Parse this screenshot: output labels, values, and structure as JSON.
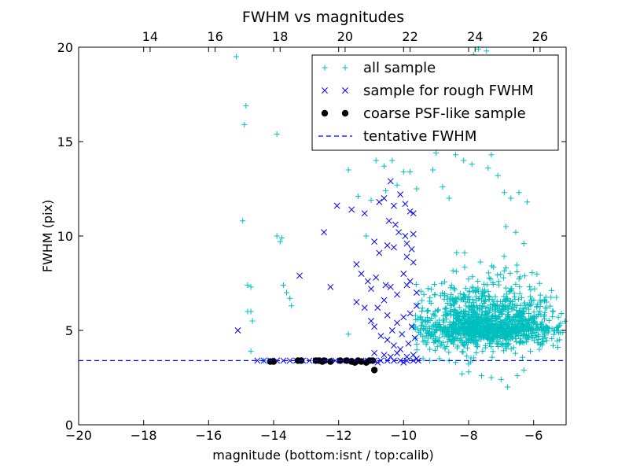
{
  "chart_data": {
    "type": "scatter",
    "title": "FWHM vs magnitudes",
    "xlabel": "magnitude (bottom:isnt / top:calib)",
    "ylabel": "FWHM (pix)",
    "xlim": [
      -20,
      -5
    ],
    "ylim": [
      0,
      20
    ],
    "x_ticks": [
      -20,
      -18,
      -16,
      -14,
      -12,
      -10,
      -8,
      -6
    ],
    "x_tick_labels": [
      "−20",
      "−18",
      "−16",
      "−14",
      "−12",
      "−10",
      "−8",
      "−6"
    ],
    "y_ticks": [
      0,
      5,
      10,
      15,
      20
    ],
    "y_tick_labels": [
      "0",
      "5",
      "10",
      "15",
      "20"
    ],
    "top_axis": {
      "label_offset": 31.8,
      "ticks": [
        14,
        16,
        18,
        20,
        22,
        24,
        26
      ],
      "tick_labels": [
        "14",
        "16",
        "18",
        "20",
        "22",
        "24",
        "26"
      ]
    },
    "grid": false,
    "legend_position": "top-right",
    "legend": [
      {
        "label": "all sample",
        "marker": "+",
        "color": "#00bfbf"
      },
      {
        "label": "sample for rough FWHM",
        "marker": "x",
        "color": "#0000ff"
      },
      {
        "label": "coarse PSF-like sample",
        "marker": "o",
        "color": "#000000"
      },
      {
        "label": "tentative FWHM",
        "marker": "dashed-line",
        "color": "#0000ff"
      }
    ],
    "tentative_fwhm": 3.4,
    "series": [
      {
        "name": "all sample",
        "marker": "+",
        "color": "#00bfbf",
        "points": [
          [
            -15.15,
            19.5
          ],
          [
            -14.85,
            16.9
          ],
          [
            -14.9,
            15.9
          ],
          [
            -14.95,
            10.8
          ],
          [
            -14.8,
            7.4
          ],
          [
            -14.7,
            7.3
          ],
          [
            -14.8,
            6.0
          ],
          [
            -14.7,
            6.0
          ],
          [
            -14.65,
            5.5
          ],
          [
            -14.7,
            3.9
          ],
          [
            -14.3,
            3.4
          ],
          [
            -13.9,
            15.4
          ],
          [
            -13.9,
            10.0
          ],
          [
            -13.75,
            9.9
          ],
          [
            -13.8,
            9.7
          ],
          [
            -13.7,
            7.4
          ],
          [
            -13.6,
            7.0
          ],
          [
            -13.5,
            6.7
          ],
          [
            -13.45,
            6.3
          ],
          [
            -11.7,
            13.5
          ],
          [
            -11.4,
            12.1
          ],
          [
            -11.15,
            10.0
          ],
          [
            -10.85,
            14.0
          ],
          [
            -11.0,
            11.9
          ],
          [
            -11.7,
            4.8
          ],
          [
            -10.6,
            13.7
          ],
          [
            -10.55,
            12.4
          ],
          [
            -10.35,
            14.0
          ],
          [
            -10.2,
            12.7
          ],
          [
            -10.0,
            13.4
          ],
          [
            -9.8,
            13.4
          ],
          [
            -9.6,
            12.5
          ],
          [
            -9.7,
            14.7
          ],
          [
            -9.4,
            15.2
          ],
          [
            -9.0,
            14.4
          ],
          [
            -9.1,
            13.5
          ],
          [
            -8.8,
            12.6
          ],
          [
            -8.6,
            12.0
          ],
          [
            -8.4,
            14.3
          ],
          [
            -8.15,
            14.0
          ],
          [
            -7.9,
            13.8
          ],
          [
            -7.7,
            14.8
          ],
          [
            -7.4,
            13.6
          ],
          [
            -7.1,
            13.2
          ],
          [
            -6.9,
            12.3
          ],
          [
            -6.7,
            12.0
          ],
          [
            -8.05,
            16.9
          ],
          [
            -7.95,
            18.3
          ],
          [
            -7.8,
            15.5
          ],
          [
            -7.6,
            16.7
          ],
          [
            -7.5,
            15.2
          ],
          [
            -7.35,
            15.5
          ],
          [
            -7.3,
            14.3
          ],
          [
            -7.2,
            17.5
          ],
          [
            -7.7,
            19.9
          ],
          [
            -7.85,
            19.6
          ],
          [
            -7.45,
            19.8
          ],
          [
            -7.2,
            19.0
          ],
          [
            -8.3,
            18.9
          ],
          [
            -8.2,
            15.3
          ],
          [
            -8.5,
            16.7
          ],
          [
            -8.7,
            17.5
          ],
          [
            -6.45,
            12.3
          ],
          [
            -6.2,
            11.8
          ],
          [
            -6.85,
            10.5
          ],
          [
            -6.55,
            10.2
          ],
          [
            -6.3,
            9.6
          ],
          [
            -5.8,
            6.6
          ],
          [
            -5.6,
            6.5
          ],
          [
            -5.4,
            6.0
          ],
          [
            -5.3,
            5.0
          ],
          [
            -5.2,
            4.5
          ],
          [
            -5.1,
            4.9
          ],
          [
            -5.4,
            4.2
          ],
          [
            -5.7,
            4.4
          ],
          [
            -5.9,
            5.3
          ],
          [
            -6.1,
            3.9
          ],
          [
            -6.3,
            2.9
          ],
          [
            -6.8,
            2.0
          ],
          [
            -7.0,
            2.4
          ],
          [
            -7.3,
            2.5
          ],
          [
            -7.6,
            2.6
          ],
          [
            -8.0,
            2.8
          ],
          [
            -8.2,
            2.7
          ],
          [
            -6.5,
            2.6
          ],
          [
            -9.4,
            3.5
          ],
          [
            -9.2,
            3.4
          ],
          [
            -8.9,
            3.5
          ],
          [
            -8.6,
            3.4
          ],
          [
            -8.4,
            3.3
          ]
        ],
        "cluster": {
          "count": 1400,
          "center": [
            -7.5,
            5.2
          ],
          "spread": [
            1.1,
            1.4
          ],
          "xlim": [
            -9.7,
            -5.0
          ],
          "ylim": [
            3.1,
            12.8
          ]
        }
      },
      {
        "name": "sample for rough FWHM",
        "marker": "x",
        "color": "#0000ff",
        "points": [
          [
            -15.1,
            5.0
          ],
          [
            -13.2,
            7.9
          ],
          [
            -12.45,
            10.2
          ],
          [
            -12.25,
            7.3
          ],
          [
            -12.05,
            11.6
          ],
          [
            -11.6,
            11.4
          ],
          [
            -11.2,
            11.2
          ],
          [
            -11.45,
            8.5
          ],
          [
            -11.3,
            8.0
          ],
          [
            -11.1,
            7.6
          ],
          [
            -11.0,
            7.2
          ],
          [
            -11.45,
            6.5
          ],
          [
            -11.2,
            6.2
          ],
          [
            -11.0,
            5.5
          ],
          [
            -10.9,
            5.2
          ],
          [
            -10.75,
            11.8
          ],
          [
            -10.6,
            12.0
          ],
          [
            -10.4,
            12.9
          ],
          [
            -10.3,
            11.6
          ],
          [
            -10.1,
            12.2
          ],
          [
            -9.95,
            11.7
          ],
          [
            -9.8,
            11.3
          ],
          [
            -9.7,
            11.2
          ],
          [
            -10.9,
            9.7
          ],
          [
            -10.75,
            9.1
          ],
          [
            -10.5,
            9.5
          ],
          [
            -10.3,
            9.4
          ],
          [
            -9.9,
            8.9
          ],
          [
            -9.75,
            9.3
          ],
          [
            -10.55,
            7.4
          ],
          [
            -10.4,
            7.3
          ],
          [
            -10.6,
            6.6
          ],
          [
            -10.2,
            6.9
          ],
          [
            -9.8,
            7.6
          ],
          [
            -9.6,
            7.0
          ],
          [
            -10.0,
            8.0
          ],
          [
            -9.9,
            7.4
          ],
          [
            -9.7,
            8.6
          ],
          [
            -10.8,
            6.2
          ],
          [
            -10.5,
            5.8
          ],
          [
            -10.2,
            5.4
          ],
          [
            -10.0,
            5.7
          ],
          [
            -9.8,
            5.9
          ],
          [
            -9.6,
            6.3
          ],
          [
            -10.7,
            4.7
          ],
          [
            -10.5,
            4.5
          ],
          [
            -10.3,
            4.2
          ],
          [
            -10.1,
            4.0
          ],
          [
            -9.85,
            4.3
          ],
          [
            -9.65,
            4.6
          ],
          [
            -10.9,
            3.8
          ],
          [
            -10.6,
            3.7
          ],
          [
            -10.4,
            3.6
          ],
          [
            -10.2,
            3.8
          ],
          [
            -9.9,
            3.6
          ],
          [
            -9.7,
            3.7
          ],
          [
            -14.5,
            3.4
          ],
          [
            -14.3,
            3.4
          ],
          [
            -14.1,
            3.4
          ],
          [
            -13.9,
            3.4
          ],
          [
            -13.7,
            3.4
          ],
          [
            -13.5,
            3.4
          ],
          [
            -13.3,
            3.4
          ],
          [
            -13.1,
            3.4
          ],
          [
            -12.9,
            3.4
          ],
          [
            -12.7,
            3.4
          ],
          [
            -12.5,
            3.4
          ],
          [
            -12.3,
            3.4
          ],
          [
            -12.1,
            3.4
          ],
          [
            -11.9,
            3.4
          ],
          [
            -11.7,
            3.4
          ],
          [
            -11.5,
            3.4
          ],
          [
            -11.3,
            3.4
          ],
          [
            -11.1,
            3.4
          ],
          [
            -10.9,
            3.4
          ],
          [
            -10.7,
            3.4
          ],
          [
            -10.5,
            3.4
          ],
          [
            -10.3,
            3.4
          ],
          [
            -10.1,
            3.4
          ],
          [
            -9.9,
            3.4
          ],
          [
            -9.7,
            3.4
          ],
          [
            -9.55,
            3.4
          ],
          [
            -10.8,
            3.3
          ],
          [
            -10.0,
            3.3
          ],
          [
            -9.6,
            3.5
          ],
          [
            -10.25,
            10.6
          ],
          [
            -10.15,
            10.2
          ],
          [
            -9.95,
            10.0
          ],
          [
            -10.45,
            10.8
          ],
          [
            -10.85,
            7.8
          ],
          [
            -9.9,
            9.6
          ],
          [
            -9.7,
            10.1
          ],
          [
            -10.05,
            4.8
          ],
          [
            -9.75,
            5.2
          ],
          [
            -10.35,
            5.0
          ]
        ]
      },
      {
        "name": "coarse PSF-like sample",
        "marker": "o",
        "color": "#000000",
        "points": [
          [
            -14.1,
            3.35
          ],
          [
            -14.0,
            3.35
          ],
          [
            -13.25,
            3.4
          ],
          [
            -13.15,
            3.4
          ],
          [
            -12.7,
            3.4
          ],
          [
            -12.6,
            3.4
          ],
          [
            -12.5,
            3.35
          ],
          [
            -12.45,
            3.4
          ],
          [
            -12.25,
            3.35
          ],
          [
            -11.95,
            3.4
          ],
          [
            -11.75,
            3.4
          ],
          [
            -11.6,
            3.35
          ],
          [
            -11.5,
            3.3
          ],
          [
            -11.4,
            3.4
          ],
          [
            -11.3,
            3.35
          ],
          [
            -11.15,
            3.3
          ],
          [
            -11.05,
            3.4
          ],
          [
            -10.95,
            3.4
          ],
          [
            -10.9,
            2.9
          ]
        ]
      }
    ]
  }
}
